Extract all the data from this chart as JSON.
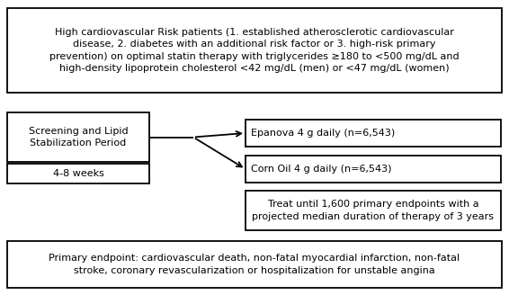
{
  "top_box_text": "High cardiovascular Risk patients (1. established atherosclerotic cardiovascular\ndisease, 2. diabetes with an additional risk factor or 3. high-risk primary\nprevention) on optimal statin therapy with triglycerides ≥180 to <500 mg/dL and\nhigh-density lipoprotein cholesterol <42 mg/dL (men) or <47 mg/dL (women)",
  "screening_box_text": "Screening and Lipid\nStabilization Period",
  "weeks_box_text": "4-8 weeks",
  "epanova_box_text": "Epanova 4 g daily (n=6,543)",
  "cornoil_box_text": "Corn Oil 4 g daily (n=6,543)",
  "treat_box_text": "Treat until 1,600 primary endpoints with a\nprojected median duration of therapy of 3 years",
  "bottom_box_text": "Primary endpoint: cardiovascular death, non-fatal myocardial infarction, non-fatal\nstroke, coronary revascularization or hospitalization for unstable angina",
  "bg_color": "#ffffff",
  "box_facecolor": "#ffffff",
  "box_edgecolor": "#000000",
  "text_color": "#000000",
  "fontsize": 8.0,
  "lw": 1.3
}
